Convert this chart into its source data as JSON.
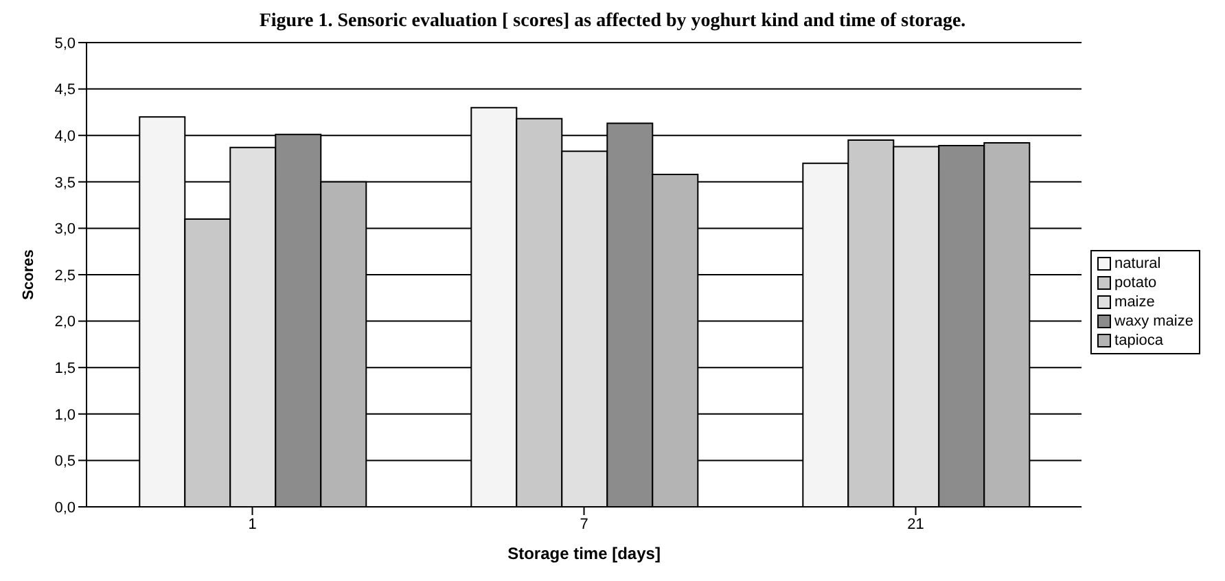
{
  "chart_data": {
    "type": "bar",
    "title": "Figure 1. Sensoric evaluation [ scores] as affected by yoghurt kind and time of storage.",
    "xlabel": "Storage time [days]",
    "ylabel": "Scores",
    "categories": [
      "1",
      "7",
      "21"
    ],
    "series": [
      {
        "name": "natural",
        "color": "#f4f4f4",
        "values": [
          4.2,
          4.3,
          3.7
        ]
      },
      {
        "name": "potato",
        "color": "#c8c8c8",
        "values": [
          3.1,
          4.18,
          3.95
        ]
      },
      {
        "name": "maize",
        "color": "#e0e0e0",
        "values": [
          3.87,
          3.83,
          3.88
        ]
      },
      {
        "name": "waxy maize",
        "color": "#8c8c8c",
        "values": [
          4.01,
          4.13,
          3.89
        ]
      },
      {
        "name": "tapioca",
        "color": "#b4b4b4",
        "values": [
          3.5,
          3.58,
          3.92
        ]
      }
    ],
    "ylim": [
      0,
      5
    ],
    "yticks": [
      {
        "value": 0,
        "label": "0,0"
      },
      {
        "value": 0.5,
        "label": "0,5"
      },
      {
        "value": 1,
        "label": "1,0"
      },
      {
        "value": 1.5,
        "label": "1,5"
      },
      {
        "value": 2,
        "label": "2,0"
      },
      {
        "value": 2.5,
        "label": "2,5"
      },
      {
        "value": 3,
        "label": "3,0"
      },
      {
        "value": 3.5,
        "label": "3,5"
      },
      {
        "value": 4,
        "label": "4,0"
      },
      {
        "value": 4.5,
        "label": "4,5"
      },
      {
        "value": 5,
        "label": "5,0"
      }
    ],
    "grid": "y",
    "legend": "right"
  }
}
